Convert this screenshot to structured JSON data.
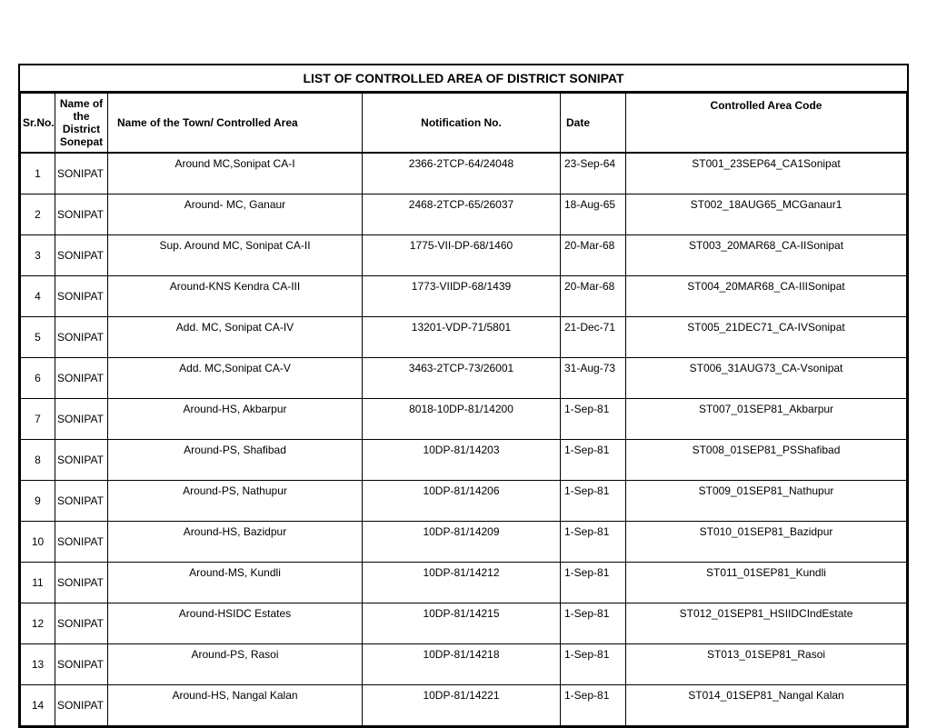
{
  "title": "LIST OF CONTROLLED AREA OF DISTRICT SONIPAT",
  "columns": {
    "srno": "Sr.No.",
    "district": "Name of the District Sonepat",
    "area": "Name of the Town/ Controlled Area",
    "notif": "Notification No.",
    "date": "Date",
    "code": "Controlled Area Code"
  },
  "rows": [
    {
      "srno": "1",
      "district": "SONIPAT",
      "area": "Around MC,Sonipat CA-I",
      "notif": "2366-2TCP-64/24048",
      "date": "23-Sep-64",
      "code": "ST001_23SEP64_CA1Sonipat"
    },
    {
      "srno": "2",
      "district": "SONIPAT",
      "area": "Around- MC, Ganaur",
      "notif": "2468-2TCP-65/26037",
      "date": "18-Aug-65",
      "code": "ST002_18AUG65_MCGanaur1"
    },
    {
      "srno": "3",
      "district": "SONIPAT",
      "area": "Sup. Around MC, Sonipat CA-II",
      "notif": "1775-VII-DP-68/1460",
      "date": "20-Mar-68",
      "code": "ST003_20MAR68_CA-IISonipat"
    },
    {
      "srno": "4",
      "district": "SONIPAT",
      "area": "Around-KNS Kendra CA-III",
      "notif": "1773-VIIDP-68/1439",
      "date": "20-Mar-68",
      "code": "ST004_20MAR68_CA-IIISonipat"
    },
    {
      "srno": "5",
      "district": "SONIPAT",
      "area": "Add. MC, Sonipat CA-IV",
      "notif": "13201-VDP-71/5801",
      "date": "21-Dec-71",
      "code": "ST005_21DEC71_CA-IVSonipat"
    },
    {
      "srno": "6",
      "district": "SONIPAT",
      "area": "Add. MC,Sonipat CA-V",
      "notif": "3463-2TCP-73/26001",
      "date": "31-Aug-73",
      "code": "ST006_31AUG73_CA-Vsonipat"
    },
    {
      "srno": "7",
      "district": "SONIPAT",
      "area": "Around-HS, Akbarpur",
      "notif": "8018-10DP-81/14200",
      "date": "1-Sep-81",
      "code": "ST007_01SEP81_Akbarpur"
    },
    {
      "srno": "8",
      "district": "SONIPAT",
      "area": "Around-PS, Shafibad",
      "notif": "10DP-81/14203",
      "date": "1-Sep-81",
      "code": "ST008_01SEP81_PSShafibad"
    },
    {
      "srno": "9",
      "district": "SONIPAT",
      "area": "Around-PS, Nathupur",
      "notif": "10DP-81/14206",
      "date": "1-Sep-81",
      "code": "ST009_01SEP81_Nathupur"
    },
    {
      "srno": "10",
      "district": "SONIPAT",
      "area": "Around-HS, Bazidpur",
      "notif": "10DP-81/14209",
      "date": "1-Sep-81",
      "code": "ST010_01SEP81_Bazidpur"
    },
    {
      "srno": "11",
      "district": "SONIPAT",
      "area": "Around-MS, Kundli",
      "notif": "10DP-81/14212",
      "date": "1-Sep-81",
      "code": "ST011_01SEP81_Kundli"
    },
    {
      "srno": "12",
      "district": "SONIPAT",
      "area": "Around-HSIDC Estates",
      "notif": "10DP-81/14215",
      "date": "1-Sep-81",
      "code": "ST012_01SEP81_HSIIDCIndEstate"
    },
    {
      "srno": "13",
      "district": "SONIPAT",
      "area": "Around-PS, Rasoi",
      "notif": "10DP-81/14218",
      "date": "1-Sep-81",
      "code": "ST013_01SEP81_Rasoi"
    },
    {
      "srno": "14",
      "district": "SONIPAT",
      "area": "Around-HS, Nangal Kalan",
      "notif": "10DP-81/14221",
      "date": "1-Sep-81",
      "code": "ST014_01SEP81_Nangal Kalan"
    }
  ],
  "style": {
    "border_color": "#000000",
    "background_color": "#ffffff",
    "title_fontsize": 14,
    "cell_fontsize": 12,
    "font_family": "Arial"
  }
}
